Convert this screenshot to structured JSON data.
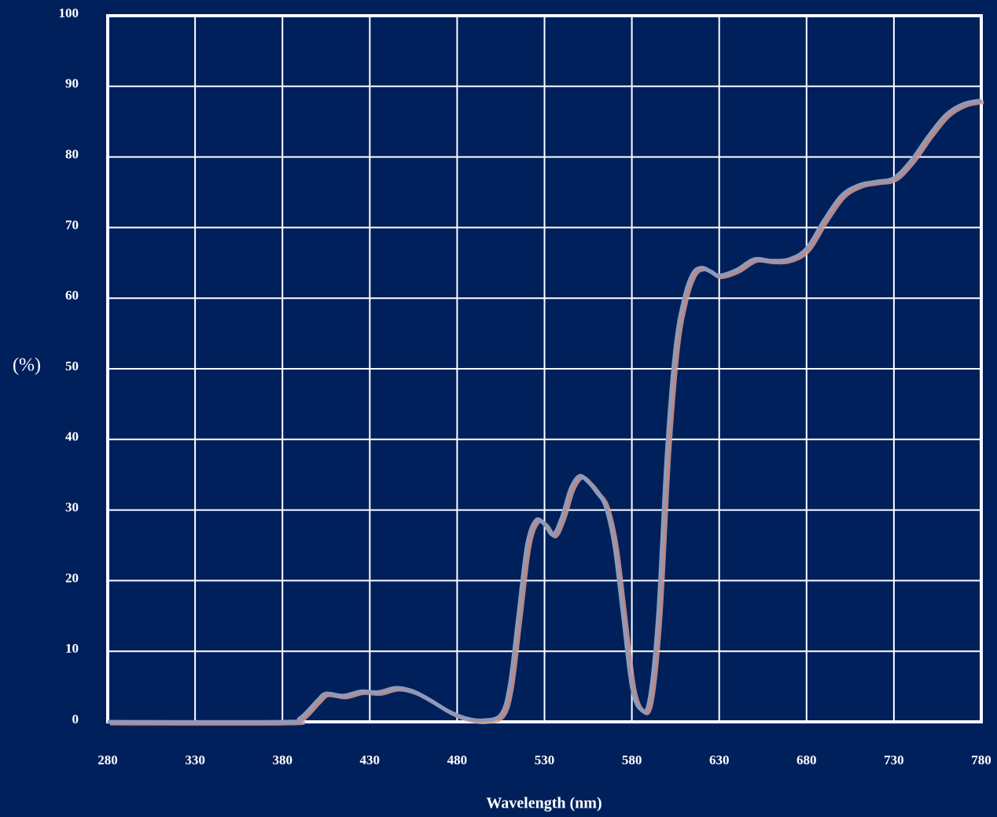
{
  "chart_data": {
    "type": "line",
    "x_label": "Wavelength (nm)",
    "y_label": "(%)",
    "xlim": [
      280,
      780
    ],
    "ylim": [
      0,
      100
    ],
    "xticks": [
      280,
      330,
      380,
      430,
      480,
      530,
      580,
      630,
      680,
      730,
      780
    ],
    "yticks": [
      0,
      10,
      20,
      30,
      40,
      50,
      60,
      70,
      80,
      90,
      100
    ],
    "grid": true,
    "series": [
      {
        "color": "#8c9bbd",
        "x": [
          280,
          380,
          390,
          400,
          405,
          415,
          425,
          435,
          445,
          455,
          465,
          475,
          485,
          495,
          505,
          510,
          515,
          520,
          525,
          530,
          535,
          540,
          545,
          550,
          555,
          560,
          565,
          570,
          575,
          580,
          585,
          590,
          595,
          600,
          605,
          610,
          615,
          620,
          625,
          630,
          640,
          650,
          660,
          670,
          680,
          690,
          700,
          710,
          720,
          730,
          740,
          750,
          760,
          770,
          780
        ],
        "values": [
          0,
          0,
          0.5,
          3,
          4,
          3.7,
          4.3,
          4.2,
          4.8,
          4.3,
          3,
          1.5,
          0.5,
          0.2,
          1,
          5,
          15,
          25,
          28.5,
          28,
          26.5,
          29,
          33,
          34.8,
          34,
          32.5,
          30.5,
          25,
          15,
          5,
          1.8,
          3,
          15,
          38,
          53,
          60,
          63.5,
          64.3,
          63.8,
          63.2,
          64,
          65.5,
          65.3,
          65.5,
          67,
          71,
          74.5,
          76,
          76.5,
          77,
          79.5,
          83,
          86,
          87.5,
          88
        ]
      }
    ]
  }
}
